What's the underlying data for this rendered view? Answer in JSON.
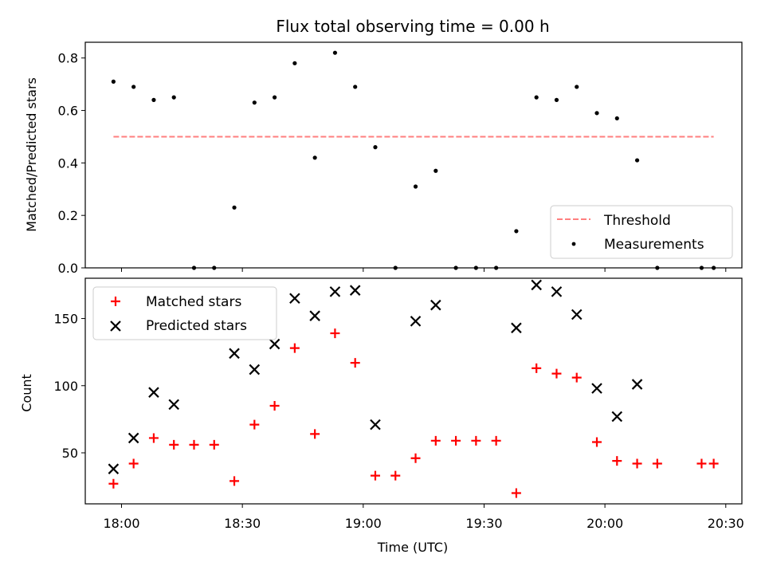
{
  "chart_data": [
    {
      "type": "scatter",
      "title": "Flux total observing time = 0.00 h",
      "ylabel": "Matched/Predicted stars",
      "xlabel": "",
      "ylim": [
        0,
        0.86
      ],
      "yticks": [
        "0.0",
        "0.2",
        "0.4",
        "0.6",
        "0.8"
      ],
      "legend_position": "bottom-right",
      "threshold": {
        "name": "Threshold",
        "value": 0.5,
        "x_start": "17:58",
        "x_end": "20:27",
        "color": "#ff7f7f"
      },
      "series": [
        {
          "name": "Measurements",
          "color": "#000000",
          "points": [
            [
              "17:58",
              0.71
            ],
            [
              "18:03",
              0.69
            ],
            [
              "18:08",
              0.64
            ],
            [
              "18:13",
              0.65
            ],
            [
              "18:18",
              0.0
            ],
            [
              "18:23",
              0.0
            ],
            [
              "18:28",
              0.23
            ],
            [
              "18:33",
              0.63
            ],
            [
              "18:38",
              0.65
            ],
            [
              "18:43",
              0.78
            ],
            [
              "18:48",
              0.42
            ],
            [
              "18:53",
              0.82
            ],
            [
              "18:58",
              0.69
            ],
            [
              "19:03",
              0.46
            ],
            [
              "19:08",
              0.0
            ],
            [
              "19:13",
              0.31
            ],
            [
              "19:18",
              0.37
            ],
            [
              "19:23",
              0.0
            ],
            [
              "19:28",
              0.0
            ],
            [
              "19:33",
              0.0
            ],
            [
              "19:38",
              0.14
            ],
            [
              "19:43",
              0.65
            ],
            [
              "19:48",
              0.64
            ],
            [
              "19:53",
              0.69
            ],
            [
              "19:58",
              0.59
            ],
            [
              "20:03",
              0.57
            ],
            [
              "20:08",
              0.41
            ],
            [
              "20:13",
              0.0
            ],
            [
              "20:24",
              0.0
            ],
            [
              "20:27",
              0.0
            ]
          ]
        }
      ]
    },
    {
      "type": "scatter",
      "title": "",
      "ylabel": "Count",
      "xlabel": "Time (UTC)",
      "ylim": [
        12,
        180
      ],
      "yticks": [
        "50",
        "100",
        "150"
      ],
      "legend_position": "top-left",
      "series": [
        {
          "name": "Matched stars",
          "marker": "+",
          "color": "#ff0000",
          "points": [
            [
              "17:58",
              27
            ],
            [
              "18:03",
              42
            ],
            [
              "18:08",
              61
            ],
            [
              "18:13",
              56
            ],
            [
              "18:18",
              56
            ],
            [
              "18:23",
              56
            ],
            [
              "18:28",
              29
            ],
            [
              "18:33",
              71
            ],
            [
              "18:38",
              85
            ],
            [
              "18:43",
              128
            ],
            [
              "18:48",
              64
            ],
            [
              "18:53",
              139
            ],
            [
              "18:58",
              117
            ],
            [
              "19:03",
              33
            ],
            [
              "19:08",
              33
            ],
            [
              "19:13",
              46
            ],
            [
              "19:18",
              59
            ],
            [
              "19:23",
              59
            ],
            [
              "19:28",
              59
            ],
            [
              "19:33",
              59
            ],
            [
              "19:38",
              20
            ],
            [
              "19:43",
              113
            ],
            [
              "19:48",
              109
            ],
            [
              "19:53",
              106
            ],
            [
              "19:58",
              58
            ],
            [
              "20:03",
              44
            ],
            [
              "20:08",
              42
            ],
            [
              "20:13",
              42
            ],
            [
              "20:24",
              42
            ],
            [
              "20:27",
              42
            ]
          ]
        },
        {
          "name": "Predicted stars",
          "marker": "x",
          "color": "#000000",
          "points": [
            [
              "17:58",
              38
            ],
            [
              "18:03",
              61
            ],
            [
              "18:08",
              95
            ],
            [
              "18:13",
              86
            ],
            [
              "18:28",
              124
            ],
            [
              "18:33",
              112
            ],
            [
              "18:38",
              131
            ],
            [
              "18:43",
              165
            ],
            [
              "18:48",
              152
            ],
            [
              "18:53",
              170
            ],
            [
              "18:58",
              171
            ],
            [
              "19:03",
              71
            ],
            [
              "19:13",
              148
            ],
            [
              "19:18",
              160
            ],
            [
              "19:38",
              143
            ],
            [
              "19:43",
              175
            ],
            [
              "19:48",
              170
            ],
            [
              "19:53",
              153
            ],
            [
              "19:58",
              98
            ],
            [
              "20:03",
              77
            ],
            [
              "20:08",
              101
            ]
          ]
        }
      ]
    }
  ],
  "x_axis": {
    "range": [
      "17:51",
      "20:34"
    ],
    "ticks": [
      "18:00",
      "18:30",
      "19:00",
      "19:30",
      "20:00",
      "20:30"
    ]
  }
}
